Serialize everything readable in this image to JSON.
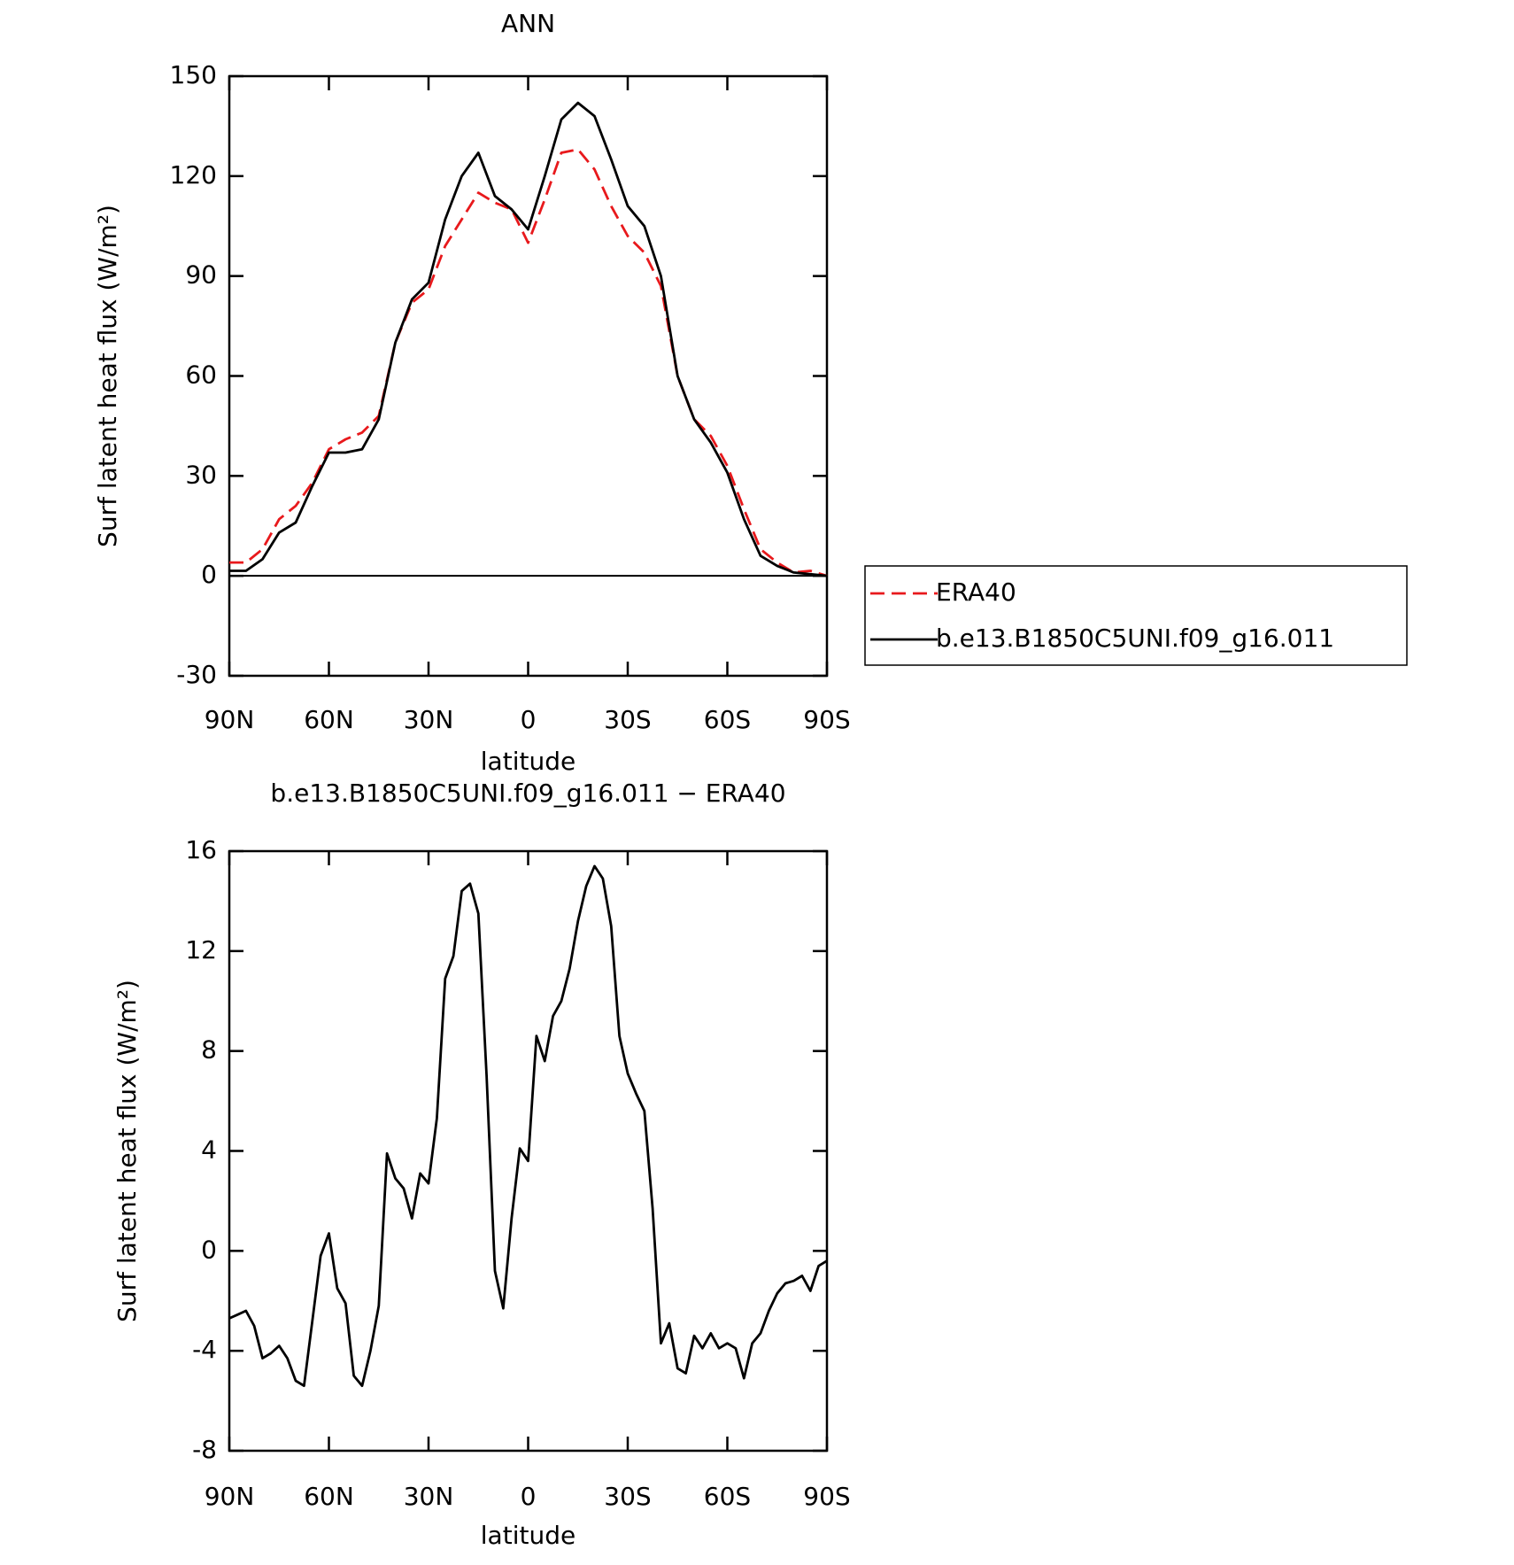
{
  "chart_data": [
    {
      "type": "line",
      "title": "ANN",
      "xlabel": "latitude",
      "ylabel": "Surf latent heat flux (W/m²)",
      "x": [
        90,
        85,
        80,
        75,
        70,
        65,
        60,
        55,
        50,
        45,
        40,
        35,
        30,
        25,
        20,
        15,
        10,
        5,
        0,
        -5,
        -10,
        -15,
        -20,
        -25,
        -30,
        -35,
        -40,
        -45,
        -50,
        -55,
        -60,
        -65,
        -70,
        -75,
        -80,
        -85,
        -90
      ],
      "series": [
        {
          "name": "ERA40",
          "color": "#e8191c",
          "linestyle": "dashed",
          "values": [
            4,
            4,
            8,
            17,
            21,
            28,
            38,
            41,
            43,
            48,
            70,
            82,
            86,
            99,
            107,
            115,
            112,
            110,
            100,
            113,
            127,
            128,
            122,
            111,
            102,
            97,
            87,
            60,
            47,
            42,
            33,
            20,
            8,
            4,
            1,
            1.5,
            0
          ]
        },
        {
          "name": "b.e13.B1850C5UNI.f09_g16.011",
          "color": "#000000",
          "linestyle": "solid",
          "values": [
            1.5,
            1.5,
            5,
            13,
            16,
            27,
            37,
            37,
            38,
            47,
            70,
            83,
            88,
            107,
            120,
            127,
            114,
            110,
            104,
            120,
            137,
            142,
            138,
            125,
            111,
            105,
            90,
            60,
            47,
            40,
            31,
            17,
            6,
            3,
            1,
            0.5,
            0
          ]
        }
      ],
      "xlim": [
        90,
        -90
      ],
      "xticks": [
        {
          "value": 90,
          "label": "90N"
        },
        {
          "value": 60,
          "label": "60N"
        },
        {
          "value": 30,
          "label": "30N"
        },
        0,
        {
          "value": -30,
          "label": "30S"
        },
        {
          "value": -60,
          "label": "60S"
        },
        {
          "value": -90,
          "label": "90S"
        }
      ],
      "ylim": [
        -30,
        150
      ],
      "yticks": [
        -30,
        0,
        30,
        60,
        90,
        120,
        150
      ],
      "legend": "right",
      "zero_line": true
    },
    {
      "type": "line",
      "title": "b.e13.B1850C5UNI.f09_g16.011 − ERA40",
      "xlabel": "latitude",
      "ylabel": "Surf latent heat flux (W/m²)",
      "x": [
        90,
        87.5,
        85,
        82.5,
        80,
        77.5,
        75,
        72.5,
        70,
        67.5,
        65,
        62.5,
        60,
        57.5,
        55,
        52.5,
        50,
        47.5,
        45,
        42.5,
        40,
        37.5,
        35,
        32.5,
        30,
        27.5,
        25,
        22.5,
        20,
        17.5,
        15,
        12.5,
        10,
        7.5,
        5,
        2.5,
        0,
        -2.5,
        -5,
        -7.5,
        -10,
        -12.5,
        -15,
        -17.5,
        -20,
        -22.5,
        -25,
        -27.5,
        -30,
        -32.5,
        -35,
        -37.5,
        -40,
        -42.5,
        -45,
        -47.5,
        -50,
        -52.5,
        -55,
        -57.5,
        -60,
        -62.5,
        -65,
        -67.5,
        -70,
        -72.5,
        -75,
        -77.5,
        -80,
        -82.5,
        -85,
        -87.5,
        -90
      ],
      "series": [
        {
          "color": "#000000",
          "linestyle": "solid",
          "values": [
            -2.7,
            -2.55,
            -2.4,
            -3,
            -4.3,
            -4.1,
            -3.8,
            -4.3,
            -5.2,
            -5.4,
            -2.8,
            -0.2,
            0.7,
            -1.5,
            -2.1,
            -5,
            -5.4,
            -4,
            -2.2,
            3.9,
            2.9,
            2.5,
            1.3,
            3.1,
            2.7,
            5.3,
            10.9,
            11.8,
            14.4,
            14.7,
            13.5,
            7,
            -0.8,
            -2.3,
            1.3,
            4.1,
            3.6,
            8.6,
            7.6,
            9.4,
            10,
            11.3,
            13.2,
            14.6,
            15.4,
            14.9,
            13,
            8.6,
            7.1,
            6.3,
            5.6,
            1.7,
            -3.7,
            -2.9,
            -4.7,
            -4.9,
            -3.4,
            -3.9,
            -3.3,
            -3.9,
            -3.7,
            -3.9,
            -5.1,
            -3.7,
            -3.3,
            -2.4,
            -1.7,
            -1.3,
            -1.2,
            -1,
            -1.6,
            -0.6,
            -0.4
          ]
        }
      ],
      "xlim": [
        90,
        -90
      ],
      "xticks": [
        {
          "value": 90,
          "label": "90N"
        },
        {
          "value": 60,
          "label": "60N"
        },
        {
          "value": 30,
          "label": "30N"
        },
        0,
        {
          "value": -30,
          "label": "30S"
        },
        {
          "value": -60,
          "label": "60S"
        },
        {
          "value": -90,
          "label": "90S"
        }
      ],
      "ylim": [
        -8,
        16
      ],
      "yticks": [
        -8,
        -4,
        0,
        4,
        8,
        12,
        16
      ]
    }
  ]
}
